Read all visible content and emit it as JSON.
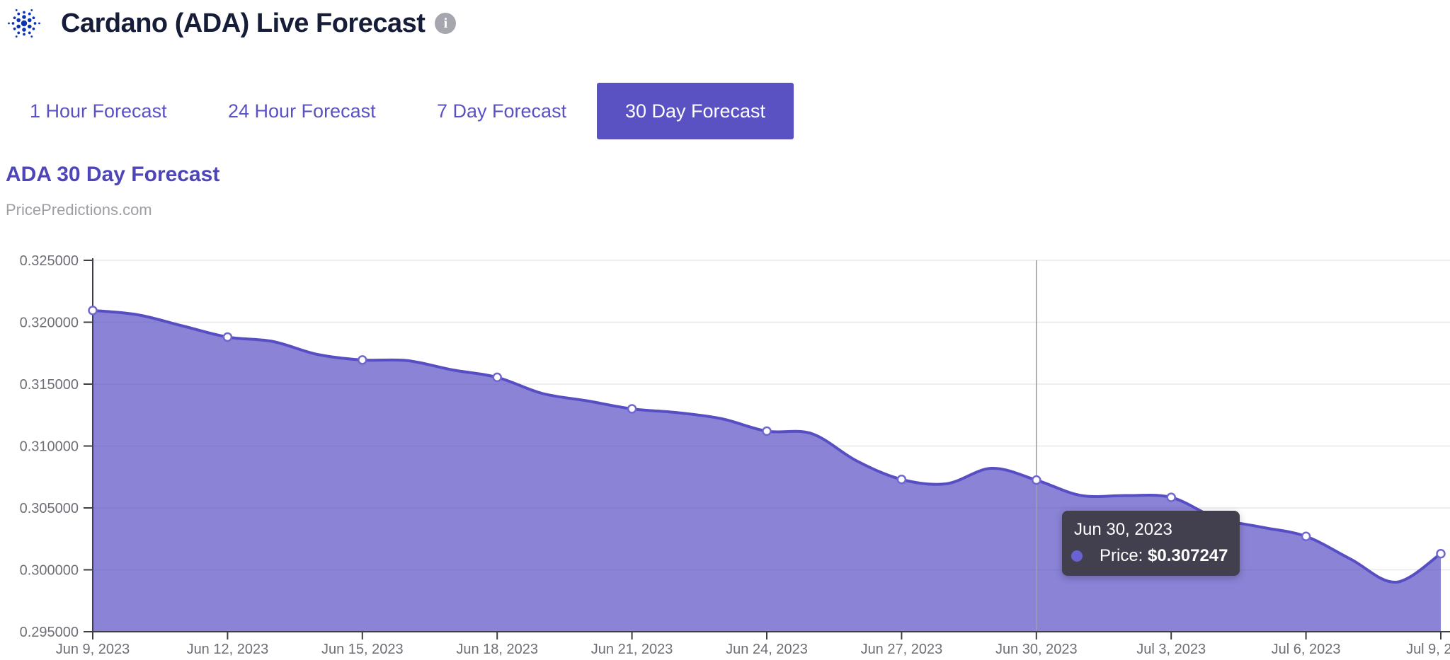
{
  "header": {
    "title": "Cardano (ADA) Live Forecast",
    "logo_icon": "cardano-logo",
    "info_glyph": "i"
  },
  "tabs": [
    {
      "label": "1 Hour Forecast",
      "active": false
    },
    {
      "label": "24 Hour Forecast",
      "active": false
    },
    {
      "label": "7 Day Forecast",
      "active": false
    },
    {
      "label": "30 Day Forecast",
      "active": true
    }
  ],
  "chart_header": {
    "title": "ADA 30 Day Forecast",
    "source": "PricePredictions.com"
  },
  "tooltip": {
    "date": "Jun 30, 2023",
    "price_label": "Price:",
    "price_value": "$0.307247"
  },
  "colors": {
    "accent": "#5a52c2",
    "chart_title": "#4e46b8",
    "line": "#584ec4",
    "area_fill_opacity": 0.7,
    "marker_ring": "#6f67cf",
    "grid": "#e8e8e8",
    "axis": "#3e3e46",
    "tick_label": "#6e6e76",
    "crosshair": "#9e9ea4",
    "tooltip_bg": "#42404f",
    "tooltip_dot": "#6a61d2",
    "logo_blue": "#0b34b5"
  },
  "chart_data": {
    "type": "area",
    "title": "ADA 30 Day Forecast",
    "subtitle": "PricePredictions.com",
    "x": [
      "Jun 9, 2023",
      "Jun 10, 2023",
      "Jun 11, 2023",
      "Jun 12, 2023",
      "Jun 13, 2023",
      "Jun 14, 2023",
      "Jun 15, 2023",
      "Jun 16, 2023",
      "Jun 17, 2023",
      "Jun 18, 2023",
      "Jun 19, 2023",
      "Jun 20, 2023",
      "Jun 21, 2023",
      "Jun 22, 2023",
      "Jun 23, 2023",
      "Jun 24, 2023",
      "Jun 25, 2023",
      "Jun 26, 2023",
      "Jun 27, 2023",
      "Jun 28, 2023",
      "Jun 29, 2023",
      "Jun 30, 2023",
      "Jul 1, 2023",
      "Jul 2, 2023",
      "Jul 3, 2023",
      "Jul 4, 2023",
      "Jul 5, 2023",
      "Jul 6, 2023",
      "Jul 7, 2023",
      "Jul 8, 2023",
      "Jul 9, 2023"
    ],
    "values": [
      0.32095,
      0.3206,
      0.3197,
      0.3188,
      0.31845,
      0.3174,
      0.31695,
      0.3169,
      0.31615,
      0.31555,
      0.31425,
      0.31365,
      0.313,
      0.3127,
      0.3122,
      0.3112,
      0.311,
      0.3088,
      0.3073,
      0.30695,
      0.3082,
      0.307247,
      0.306,
      0.306,
      0.30585,
      0.3042,
      0.30345,
      0.3027,
      0.30085,
      0.299,
      0.3013
    ],
    "ylim": [
      0.295,
      0.325
    ],
    "ytick_values": [
      0.325,
      0.32,
      0.315,
      0.31,
      0.305,
      0.3,
      0.295
    ],
    "ytick_labels": [
      "0.325000",
      "0.320000",
      "0.315000",
      "0.310000",
      "0.305000",
      "0.300000",
      "0.295000"
    ],
    "xtick_labels": [
      "Jun 9, 2023",
      "Jun 12, 2023",
      "Jun 15, 2023",
      "Jun 18, 2023",
      "Jun 21, 2023",
      "Jun 24, 2023",
      "Jun 27, 2023",
      "Jun 30, 2023",
      "Jul 3, 2023",
      "Jul 6, 2023",
      "Jul 9, 2023"
    ],
    "marker_every": 3,
    "grid": "horizontal",
    "legend": false,
    "highlight": {
      "index": 21,
      "date": "Jun 30, 2023",
      "price": "$0.307247"
    }
  }
}
